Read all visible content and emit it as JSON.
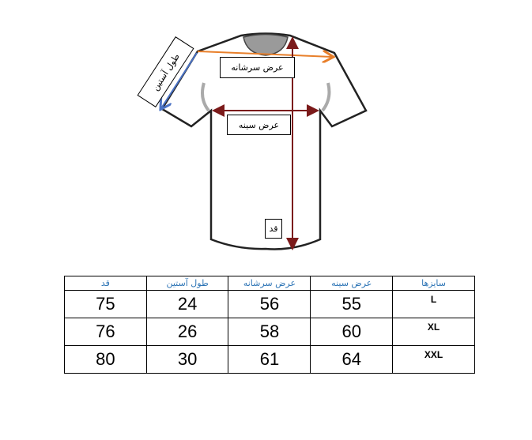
{
  "diagram": {
    "labels": {
      "shoulder_width": "عرض سرشانه",
      "chest_width": "عرض سینه",
      "length": "قد",
      "sleeve_length": "طول آستین"
    },
    "colors": {
      "shoulder_arrow": "#e87f2a",
      "length_chest_arrows": "#7b1a1a",
      "sleeve_arrow": "#4a72c4"
    }
  },
  "size_table": {
    "headers": [
      "قد",
      "طول آستین",
      "عرض سرشانه",
      "عرض سینه",
      "سایزها"
    ],
    "rows": [
      {
        "length": "75",
        "sleeve": "24",
        "shoulder": "56",
        "chest": "55",
        "size": "L"
      },
      {
        "length": "76",
        "sleeve": "26",
        "shoulder": "58",
        "chest": "60",
        "size": "XL"
      },
      {
        "length": "80",
        "sleeve": "30",
        "shoulder": "61",
        "chest": "64",
        "size": "XXL"
      }
    ]
  }
}
